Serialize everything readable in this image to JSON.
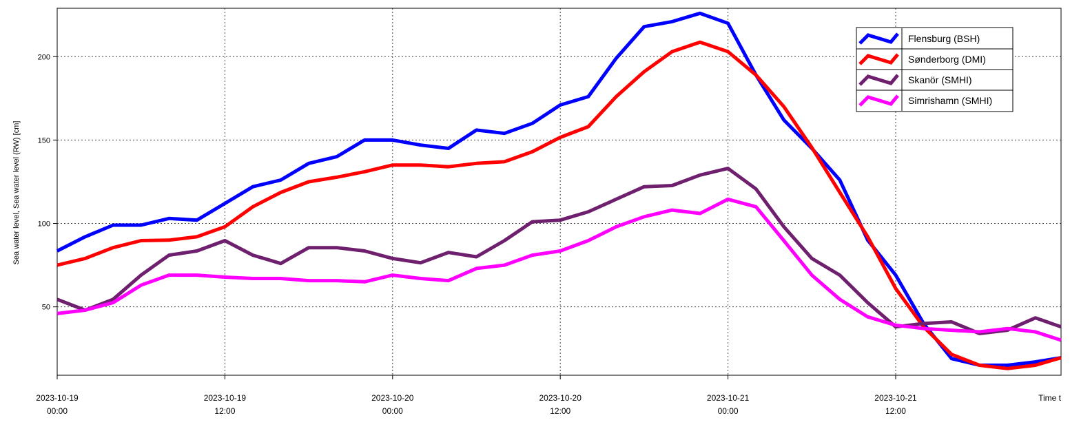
{
  "chart_data": {
    "type": "line",
    "ylabel": "Sea water level, Sea water level (RW) [cm]",
    "xlabel": "Time t",
    "x": [
      "2023-10-19 00:00",
      "2023-10-19 02:00",
      "2023-10-19 04:00",
      "2023-10-19 06:00",
      "2023-10-19 08:00",
      "2023-10-19 10:00",
      "2023-10-19 12:00",
      "2023-10-19 14:00",
      "2023-10-19 16:00",
      "2023-10-19 18:00",
      "2023-10-19 20:00",
      "2023-10-19 22:00",
      "2023-10-20 00:00",
      "2023-10-20 02:00",
      "2023-10-20 04:00",
      "2023-10-20 06:00",
      "2023-10-20 08:00",
      "2023-10-20 10:00",
      "2023-10-20 12:00",
      "2023-10-20 14:00",
      "2023-10-20 16:00",
      "2023-10-20 18:00",
      "2023-10-20 20:00",
      "2023-10-20 22:00",
      "2023-10-21 00:00",
      "2023-10-21 02:00",
      "2023-10-21 04:00",
      "2023-10-21 06:00",
      "2023-10-21 08:00",
      "2023-10-21 10:00",
      "2023-10-21 12:00",
      "2023-10-21 14:00",
      "2023-10-21 16:00",
      "2023-10-21 18:00",
      "2023-10-21 20:00",
      "2023-10-21 22:00",
      "2023-10-21 23:50"
    ],
    "series": [
      {
        "name": "Flensburg (BSH)",
        "color": "#0000ff",
        "values": [
          83.5,
          92,
          99,
          99,
          103,
          102,
          112,
          122,
          126,
          136,
          140,
          150,
          150,
          147,
          145,
          156,
          154,
          160,
          171,
          176,
          199,
          218,
          221,
          226,
          220,
          189,
          162,
          145,
          126,
          90,
          69,
          40,
          19,
          15,
          15,
          17,
          19.5
        ]
      },
      {
        "name": "Sønderborg (DMI)",
        "color": "#ff0000",
        "values": [
          75,
          79,
          85.5,
          89.7,
          90,
          92,
          98,
          110,
          118.6,
          125,
          127.7,
          131,
          135,
          135,
          134,
          136,
          137,
          143,
          151.6,
          158,
          176,
          191,
          203,
          208.7,
          203,
          189,
          170,
          145.5,
          118.6,
          92,
          61,
          38,
          21.5,
          15,
          13,
          15,
          19.5
        ]
      },
      {
        "name": "Skanör (SMHI)",
        "color": "#6e1f6e",
        "values": [
          54.5,
          48,
          54.5,
          69,
          81,
          83.5,
          89.7,
          81,
          76,
          85.5,
          85.5,
          83.5,
          79,
          76.4,
          82.6,
          80,
          89.7,
          101,
          102,
          107,
          114.5,
          122,
          122.7,
          129,
          133,
          120.7,
          98,
          79,
          69,
          52.5,
          38,
          40,
          41,
          34,
          36,
          43.4,
          38
        ]
      },
      {
        "name": "Simrishamn (SMHI)",
        "color": "#ff00ff",
        "values": [
          46,
          48,
          52.5,
          63,
          69,
          69,
          67.8,
          67,
          67,
          65.7,
          65.7,
          65,
          69,
          67,
          65.7,
          73,
          75,
          81,
          83.5,
          89.7,
          98,
          104,
          108,
          106,
          114.5,
          110,
          89.7,
          69,
          54.5,
          44,
          39,
          37,
          36,
          35,
          37,
          35,
          30
        ]
      }
    ],
    "xlim": [
      "2023-10-19 00:00",
      "2023-10-21 23:50"
    ],
    "xticks": [
      "2023-10-19 00:00",
      "2023-10-19 12:00",
      "2023-10-20 00:00",
      "2023-10-20 12:00",
      "2023-10-21 00:00",
      "2023-10-21 12:00"
    ],
    "ylim": [
      9,
      229
    ],
    "yticks": [
      50,
      100,
      150,
      200
    ],
    "grid": true,
    "legend": "upper right"
  }
}
